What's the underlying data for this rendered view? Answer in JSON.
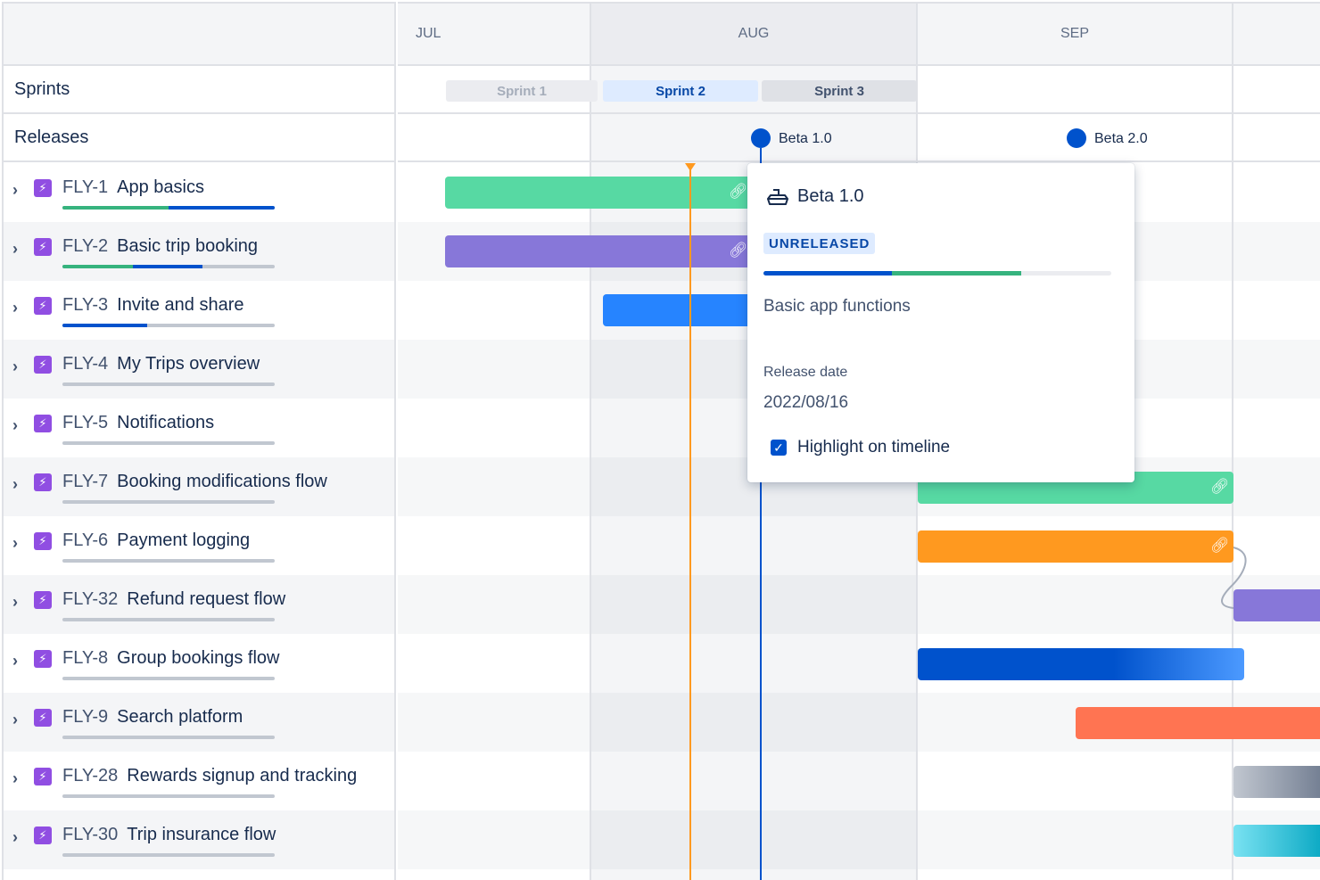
{
  "months": [
    {
      "label": "JUL"
    },
    {
      "label": "AUG"
    },
    {
      "label": "SEP"
    }
  ],
  "rows": {
    "sprints_label": "Sprints",
    "releases_label": "Releases"
  },
  "sprints": [
    {
      "label": "Sprint 1",
      "state": "closed"
    },
    {
      "label": "Sprint 2",
      "state": "active"
    },
    {
      "label": "Sprint 3",
      "state": "future"
    }
  ],
  "releases": [
    {
      "label": "Beta 1.0"
    },
    {
      "label": "Beta 2.0"
    }
  ],
  "issues": [
    {
      "key": "FLY-1",
      "title": "App basics",
      "done": 0.5,
      "in_progress": 0.5
    },
    {
      "key": "FLY-2",
      "title": "Basic trip booking",
      "done": 0.33,
      "in_progress": 0.33
    },
    {
      "key": "FLY-3",
      "title": "Invite and share",
      "done": 0,
      "in_progress": 0.4
    },
    {
      "key": "FLY-4",
      "title": "My Trips overview",
      "done": 0,
      "in_progress": 0
    },
    {
      "key": "FLY-5",
      "title": "Notifications",
      "done": 0,
      "in_progress": 0
    },
    {
      "key": "FLY-7",
      "title": "Booking modifications flow",
      "done": 0,
      "in_progress": 0
    },
    {
      "key": "FLY-6",
      "title": "Payment logging",
      "done": 0,
      "in_progress": 0
    },
    {
      "key": "FLY-32",
      "title": "Refund request flow",
      "done": 0,
      "in_progress": 0
    },
    {
      "key": "FLY-8",
      "title": "Group bookings flow",
      "done": 0,
      "in_progress": 0
    },
    {
      "key": "FLY-9",
      "title": "Search platform",
      "done": 0,
      "in_progress": 0
    },
    {
      "key": "FLY-28",
      "title": "Rewards signup and tracking",
      "done": 0,
      "in_progress": 0
    },
    {
      "key": "FLY-30",
      "title": "Trip insurance flow",
      "done": 0,
      "in_progress": 0
    }
  ],
  "popover": {
    "title": "Beta 1.0",
    "status": "UNRELEASED",
    "progress_in_progress": 0.37,
    "progress_done": 0.37,
    "description": "Basic app functions",
    "release_date_label": "Release date",
    "release_date": "2022/08/16",
    "highlight_label": "Highlight on timeline",
    "highlight_checked": true
  },
  "colors": {
    "done": "#36b37e",
    "in_progress": "#0052cc",
    "todo": "#c1c7d0",
    "epic": "#904ee2",
    "today": "#ff991f",
    "release": "#0052cc"
  }
}
